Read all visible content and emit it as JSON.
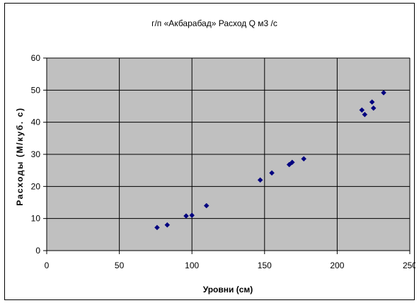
{
  "chart_data": {
    "type": "scatter",
    "title": "г/п «Акбарабад» Расход Q м3 /с",
    "xlabel": "Уровни (см)",
    "ylabel": "Расходы (М/куб. с)",
    "xlim": [
      0,
      250
    ],
    "ylim": [
      0,
      60
    ],
    "x_ticks": [
      0,
      50,
      100,
      150,
      200,
      250
    ],
    "y_ticks": [
      0,
      10,
      20,
      30,
      40,
      50,
      60
    ],
    "x_tick_labels": [
      "0",
      "50",
      "100",
      "150",
      "200",
      "250"
    ],
    "y_tick_labels": [
      "0",
      "10",
      "20",
      "30",
      "40",
      "50",
      "60"
    ],
    "grid": true,
    "legend": "none",
    "colors": {
      "plot_background": "#c0c0c0",
      "gridline": "#000000",
      "marker": "#000080"
    },
    "points": [
      {
        "x": 76,
        "y": 7.2
      },
      {
        "x": 83,
        "y": 8.0
      },
      {
        "x": 96,
        "y": 10.8
      },
      {
        "x": 100,
        "y": 11.0
      },
      {
        "x": 110,
        "y": 14.0
      },
      {
        "x": 147,
        "y": 22.0
      },
      {
        "x": 155,
        "y": 24.2
      },
      {
        "x": 167,
        "y": 26.8
      },
      {
        "x": 169,
        "y": 27.5
      },
      {
        "x": 177,
        "y": 28.6
      },
      {
        "x": 217,
        "y": 43.8
      },
      {
        "x": 219,
        "y": 42.4
      },
      {
        "x": 224,
        "y": 46.3
      },
      {
        "x": 225,
        "y": 44.4
      },
      {
        "x": 232,
        "y": 49.2
      }
    ]
  }
}
